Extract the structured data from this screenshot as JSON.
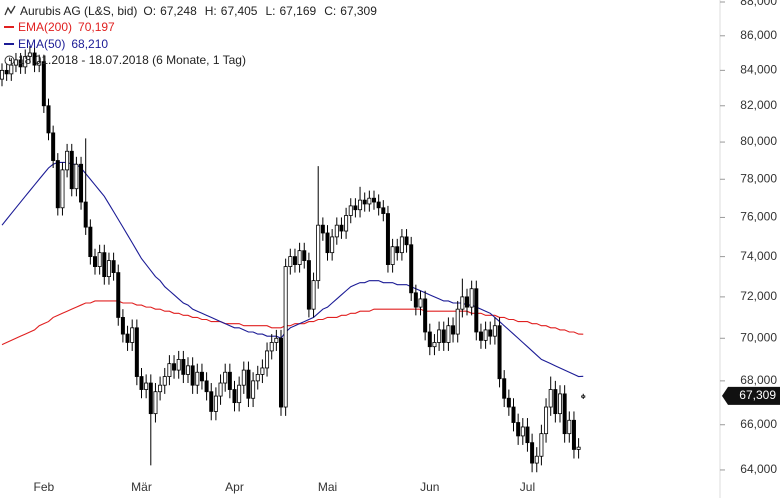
{
  "chart_data": {
    "type": "candlestick",
    "header": [
      {
        "key": "O:",
        "value": "67,248"
      },
      {
        "key": "H:",
        "value": "67,405"
      },
      {
        "key": "L:",
        "value": "67,169"
      },
      {
        "key": "C:",
        "value": "67,309"
      }
    ],
    "date_range": "18.01.2018 - 18.07.2018 (6 Monate, 1 Tag)",
    "price_tag": "67,309",
    "log_scale": true,
    "grid": false,
    "ylim": [
      62790,
      88120
    ],
    "yticks": [
      {
        "value": 64000,
        "label": "64,000"
      },
      {
        "value": 66000,
        "label": "66,000"
      },
      {
        "value": 68000,
        "label": "68,000"
      },
      {
        "value": 70000,
        "label": "70,000"
      },
      {
        "value": 72000,
        "label": "72,000"
      },
      {
        "value": 74000,
        "label": "74,000"
      },
      {
        "value": 76000,
        "label": "76,000"
      },
      {
        "value": 78000,
        "label": "78,000"
      },
      {
        "value": 80000,
        "label": "80,000"
      },
      {
        "value": 82000,
        "label": "82,000"
      },
      {
        "value": 84000,
        "label": "84,000"
      },
      {
        "value": 86000,
        "label": "86,000"
      },
      {
        "value": 88000,
        "label": "88,000"
      }
    ],
    "categories": [
      null,
      null,
      null,
      null,
      null,
      null,
      null,
      null,
      null,
      "Feb",
      null,
      null,
      null,
      null,
      null,
      null,
      null,
      null,
      null,
      null,
      null,
      null,
      null,
      null,
      null,
      null,
      null,
      null,
      null,
      null,
      "Mär",
      null,
      null,
      null,
      null,
      null,
      null,
      null,
      null,
      null,
      null,
      null,
      null,
      null,
      null,
      null,
      null,
      null,
      null,
      null,
      "Apr",
      null,
      null,
      null,
      null,
      null,
      null,
      null,
      null,
      null,
      null,
      null,
      null,
      null,
      null,
      null,
      null,
      null,
      null,
      null,
      "Mai",
      null,
      null,
      null,
      null,
      null,
      null,
      null,
      null,
      null,
      null,
      null,
      null,
      null,
      null,
      null,
      null,
      null,
      null,
      null,
      null,
      null,
      "Jun",
      null,
      null,
      null,
      null,
      null,
      null,
      null,
      null,
      null,
      null,
      null,
      null,
      null,
      null,
      null,
      null,
      null,
      null,
      null,
      null,
      "Jul",
      null,
      null,
      null,
      null,
      null,
      null,
      null,
      null,
      null,
      null,
      null,
      null
    ],
    "series": [
      {
        "name": "Aurubis AG (L&S, bid)",
        "color": "#000000",
        "open": [
          83500,
          84000,
          83800,
          84300,
          84600,
          84200,
          84800,
          85000,
          84300,
          84500,
          82000,
          80500,
          79000,
          76500,
          78500,
          79500,
          77500,
          78800,
          76800,
          75500,
          74000,
          73500,
          74200,
          73000,
          73800,
          73200,
          71000,
          70200,
          69800,
          70500,
          68200,
          67600,
          67900,
          66500,
          67500,
          67800,
          68200,
          68800,
          68500,
          69000,
          68300,
          68700,
          67800,
          68400,
          68000,
          67500,
          66600,
          67300,
          67900,
          68400,
          67600,
          67000,
          67800,
          68500,
          67200,
          68000,
          68300,
          68600,
          69400,
          69800,
          70000,
          66800,
          73500,
          74000,
          73600,
          74300,
          73800,
          71400,
          72800,
          75600,
          75200,
          74200,
          75000,
          75600,
          75300,
          76100,
          76600,
          76400,
          76900,
          76700,
          77000,
          76800,
          76500,
          76200,
          73600,
          74500,
          74200,
          75000,
          74600,
          72200,
          71500,
          71900,
          70300,
          69600,
          69800,
          70400,
          69800,
          70600,
          70200,
          71400,
          72000,
          71500,
          72400,
          70300,
          69900,
          70400,
          70100,
          70600,
          68100,
          67200,
          66800,
          66100,
          65500,
          65900,
          65200,
          64300,
          64600,
          65600,
          66800,
          67600,
          66500,
          67400,
          65600,
          66200,
          64900,
          67248
        ],
        "high": [
          84400,
          84400,
          84700,
          85000,
          85000,
          85200,
          85400,
          85400,
          84900,
          84900,
          82400,
          80900,
          79400,
          78900,
          79900,
          79900,
          79200,
          79200,
          80200,
          75900,
          74400,
          74600,
          74600,
          74200,
          74200,
          73600,
          71400,
          70600,
          70900,
          70900,
          68600,
          68300,
          68300,
          67900,
          68200,
          68600,
          69200,
          69200,
          69400,
          69400,
          69100,
          69100,
          68800,
          68800,
          68400,
          67900,
          67700,
          68300,
          68800,
          68800,
          68000,
          68200,
          68900,
          68900,
          68400,
          68700,
          69000,
          69800,
          70200,
          70400,
          70400,
          73900,
          74400,
          74400,
          74700,
          74700,
          74200,
          73200,
          78700,
          76000,
          75600,
          75400,
          76000,
          76000,
          76500,
          77000,
          77000,
          77600,
          77300,
          77400,
          77400,
          77200,
          76900,
          76600,
          74900,
          74900,
          75400,
          75400,
          75000,
          72600,
          72300,
          72300,
          70700,
          70200,
          70800,
          70800,
          71000,
          71000,
          71800,
          72900,
          72400,
          72800,
          72800,
          70700,
          70800,
          70800,
          71000,
          71000,
          68500,
          67600,
          67200,
          66500,
          66300,
          66300,
          65600,
          65000,
          66000,
          67200,
          68200,
          68000,
          67800,
          67800,
          66600,
          66600,
          65400,
          67405
        ],
        "low": [
          83100,
          83400,
          83400,
          83900,
          83800,
          83800,
          84400,
          83900,
          83900,
          81600,
          80100,
          78600,
          76100,
          76100,
          78100,
          77100,
          77100,
          76400,
          75100,
          73600,
          73100,
          73100,
          72600,
          72600,
          72800,
          70600,
          69800,
          69400,
          69400,
          67800,
          67200,
          67200,
          64200,
          66100,
          67100,
          67400,
          67800,
          68100,
          68100,
          67900,
          67900,
          67400,
          67400,
          67600,
          67100,
          66200,
          66200,
          66900,
          67500,
          67200,
          66600,
          66600,
          67400,
          66800,
          66800,
          67600,
          67900,
          68200,
          69000,
          69400,
          66400,
          66400,
          73100,
          73200,
          73200,
          73400,
          71000,
          71000,
          72400,
          74800,
          73800,
          73800,
          74600,
          74900,
          74900,
          75700,
          76000,
          76000,
          76300,
          76300,
          76400,
          76100,
          75800,
          73200,
          73200,
          73800,
          73800,
          74200,
          71800,
          71100,
          71100,
          69900,
          69200,
          69200,
          69400,
          69400,
          69400,
          69800,
          69800,
          71000,
          71100,
          71100,
          69900,
          69500,
          69500,
          69700,
          69700,
          67700,
          66800,
          66400,
          65700,
          65100,
          65100,
          64800,
          63900,
          63900,
          64200,
          65200,
          66400,
          66100,
          66100,
          65200,
          65200,
          64500,
          64500,
          67169
        ],
        "close": [
          84000,
          83800,
          84300,
          84600,
          84200,
          84800,
          85000,
          84300,
          84500,
          82000,
          80500,
          79000,
          76500,
          78500,
          79500,
          77500,
          78800,
          76800,
          75500,
          74000,
          73500,
          74200,
          73000,
          73800,
          73200,
          71000,
          70200,
          69800,
          70500,
          68200,
          67600,
          67900,
          66500,
          67500,
          67800,
          68200,
          68800,
          68500,
          69000,
          68300,
          68700,
          67800,
          68400,
          68000,
          67500,
          66600,
          67300,
          67900,
          68400,
          67600,
          67000,
          67800,
          68500,
          67200,
          68000,
          68300,
          68600,
          69400,
          69800,
          70000,
          66800,
          73500,
          74000,
          73600,
          74300,
          73800,
          71400,
          72800,
          75600,
          75200,
          74200,
          75000,
          75600,
          75300,
          76100,
          76600,
          76400,
          76900,
          76700,
          77000,
          76800,
          76500,
          76200,
          73600,
          74500,
          74200,
          75000,
          74600,
          72200,
          71500,
          71900,
          70300,
          69600,
          69800,
          70400,
          69800,
          70600,
          70200,
          71400,
          72000,
          71500,
          72400,
          70300,
          69900,
          70400,
          70100,
          70600,
          68100,
          67200,
          66800,
          66100,
          65500,
          65900,
          65200,
          64300,
          64600,
          65600,
          66800,
          67600,
          66500,
          67400,
          65600,
          66200,
          64900,
          65000,
          67309
        ]
      },
      {
        "name": "EMA(200)",
        "color": "#e02020",
        "last_label": "70,197",
        "values": [
          69700,
          69800,
          69900,
          70000,
          70100,
          70200,
          70300,
          70400,
          70600,
          70700,
          70800,
          71000,
          71100,
          71200,
          71300,
          71400,
          71500,
          71600,
          71700,
          71700,
          71800,
          71800,
          71800,
          71800,
          71800,
          71800,
          71700,
          71700,
          71700,
          71600,
          71600,
          71500,
          71500,
          71400,
          71400,
          71300,
          71300,
          71200,
          71200,
          71100,
          71100,
          71000,
          71000,
          70900,
          70900,
          70800,
          70800,
          70800,
          70700,
          70700,
          70700,
          70700,
          70600,
          70600,
          70600,
          70600,
          70600,
          70600,
          70500,
          70500,
          70500,
          70600,
          70600,
          70700,
          70700,
          70700,
          70800,
          70800,
          70900,
          70900,
          71000,
          71000,
          71000,
          71100,
          71100,
          71200,
          71200,
          71300,
          71300,
          71300,
          71400,
          71400,
          71400,
          71400,
          71400,
          71400,
          71400,
          71400,
          71400,
          71400,
          71400,
          71300,
          71300,
          71300,
          71300,
          71300,
          71300,
          71300,
          71300,
          71300,
          71300,
          71200,
          71200,
          71200,
          71100,
          71100,
          71100,
          71000,
          71000,
          70900,
          70900,
          70800,
          70800,
          70800,
          70700,
          70700,
          70600,
          70600,
          70500,
          70500,
          70400,
          70400,
          70300,
          70300,
          70200,
          70197
        ]
      },
      {
        "name": "EMA(50)",
        "color": "#1c1c96",
        "last_label": "68,210",
        "values": [
          75600,
          75900,
          76200,
          76500,
          76800,
          77100,
          77400,
          77700,
          78000,
          78300,
          78600,
          78800,
          78900,
          78900,
          78900,
          78800,
          78800,
          78600,
          78300,
          78000,
          77700,
          77400,
          77100,
          76700,
          76300,
          75900,
          75500,
          75100,
          74700,
          74300,
          73900,
          73600,
          73300,
          73000,
          72800,
          72500,
          72300,
          72100,
          71900,
          71700,
          71600,
          71400,
          71300,
          71200,
          71100,
          71000,
          70900,
          70800,
          70700,
          70600,
          70500,
          70500,
          70400,
          70300,
          70300,
          70200,
          70200,
          70100,
          70100,
          70100,
          70000,
          70300,
          70500,
          70600,
          70700,
          70800,
          70900,
          71000,
          71200,
          71400,
          71500,
          71700,
          71900,
          72100,
          72300,
          72500,
          72600,
          72700,
          72700,
          72800,
          72800,
          72800,
          72700,
          72700,
          72700,
          72600,
          72600,
          72600,
          72500,
          72400,
          72300,
          72200,
          72100,
          72000,
          71900,
          71800,
          71800,
          71700,
          71700,
          71700,
          71600,
          71600,
          71500,
          71400,
          71300,
          71200,
          71000,
          70800,
          70600,
          70400,
          70200,
          70000,
          69800,
          69600,
          69400,
          69200,
          69000,
          68900,
          68800,
          68700,
          68600,
          68500,
          68400,
          68300,
          68200,
          68210
        ]
      }
    ]
  }
}
